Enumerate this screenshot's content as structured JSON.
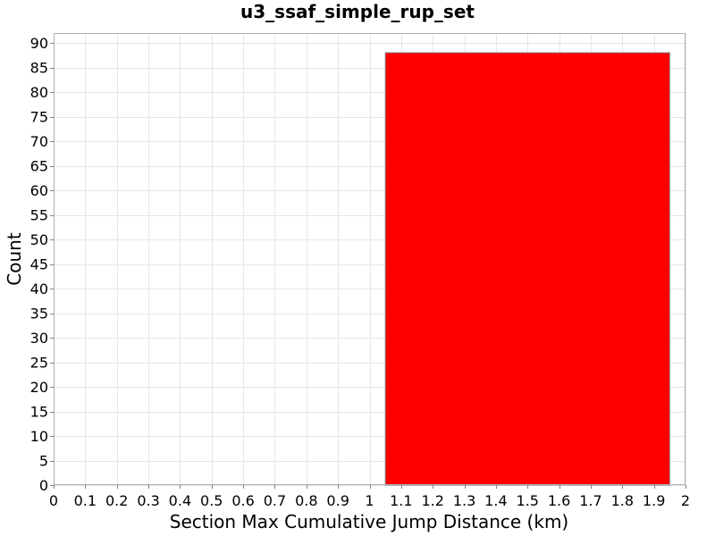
{
  "chart_data": {
    "type": "bar",
    "title": "u3_ssaf_simple_rup_set",
    "xlabel": "Section Max Cumulative Jump Distance (km)",
    "ylabel": "Count",
    "xlim": [
      0,
      2
    ],
    "ylim": [
      0,
      92
    ],
    "x_ticks": [
      "0",
      "0.1",
      "0.2",
      "0.3",
      "0.4",
      "0.5",
      "0.6",
      "0.7",
      "0.8",
      "0.9",
      "1",
      "1.1",
      "1.2",
      "1.3",
      "1.4",
      "1.5",
      "1.6",
      "1.7",
      "1.8",
      "1.9",
      "2"
    ],
    "y_ticks": [
      "0",
      "5",
      "10",
      "15",
      "20",
      "25",
      "30",
      "35",
      "40",
      "45",
      "50",
      "55",
      "60",
      "65",
      "70",
      "75",
      "80",
      "85",
      "90"
    ],
    "bars": [
      {
        "x_start": 1.05,
        "x_end": 1.95,
        "value": 88
      }
    ],
    "bar_color": "#ff0000",
    "grid": true,
    "legend": "none"
  }
}
